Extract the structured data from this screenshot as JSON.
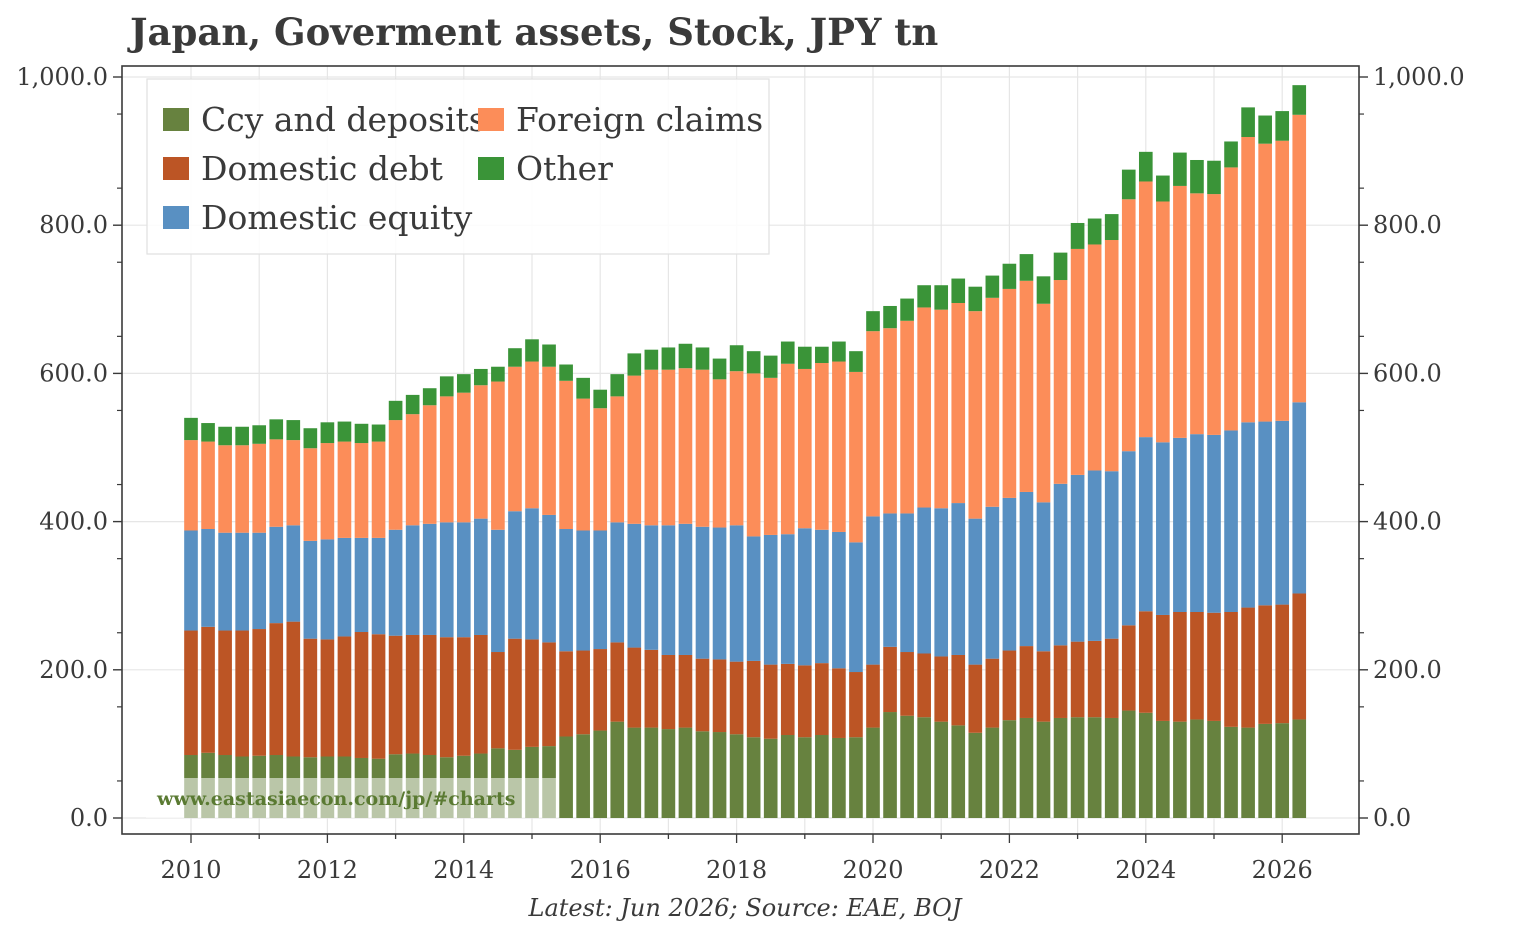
{
  "chart_data": {
    "type": "bar",
    "stacked": true,
    "title": "Japan, Goverment assets, Stock, JPY tn",
    "footnote": "Latest: Jun 2026; Source: EAE, BOJ",
    "watermark": "www.eastasiaecon.com/jp/#charts",
    "x_start": 2010.0,
    "x_step": 0.25,
    "x_ticks": [
      "2010",
      "2012",
      "2014",
      "2016",
      "2018",
      "2020",
      "2022",
      "2024",
      "2026"
    ],
    "y_ticks": [
      "0.0",
      "200.0",
      "400.0",
      "600.0",
      "800.0",
      "1,000.0"
    ],
    "ylim": [
      0,
      1000
    ],
    "legend_position": "top-left",
    "grid": true,
    "dual_y_axis": true,
    "series": [
      {
        "name": "Ccy and deposits",
        "color": "#67823f",
        "values": [
          85,
          88,
          85,
          83,
          84,
          85,
          83,
          82,
          83,
          83,
          81,
          80,
          86,
          87,
          85,
          82,
          84,
          87,
          94,
          92,
          96,
          97,
          110,
          113,
          118,
          130,
          122,
          122,
          120,
          122,
          117,
          116,
          113,
          109,
          107,
          112,
          109,
          112,
          108,
          109,
          122,
          143,
          138,
          136,
          130,
          125,
          115,
          122,
          132,
          135,
          130,
          135,
          136,
          136,
          135,
          145,
          142,
          131,
          130,
          133,
          131,
          123,
          122,
          127,
          128,
          133
        ]
      },
      {
        "name": "Domestic debt",
        "color": "#bc5525",
        "values": [
          168,
          170,
          168,
          170,
          171,
          178,
          182,
          160,
          158,
          162,
          170,
          168,
          160,
          160,
          162,
          162,
          160,
          160,
          130,
          150,
          145,
          140,
          115,
          113,
          110,
          107,
          108,
          105,
          100,
          98,
          98,
          98,
          98,
          103,
          100,
          96,
          97,
          97,
          94,
          88,
          85,
          88,
          86,
          86,
          88,
          95,
          92,
          93,
          94,
          97,
          95,
          98,
          102,
          103,
          107,
          115,
          137,
          143,
          148,
          145,
          146,
          155,
          162,
          160,
          160,
          170
        ]
      },
      {
        "name": "Domestic equity",
        "color": "#5990c2",
        "values": [
          135,
          132,
          132,
          132,
          130,
          130,
          130,
          132,
          135,
          133,
          127,
          130,
          143,
          148,
          150,
          155,
          155,
          157,
          165,
          172,
          177,
          172,
          165,
          162,
          160,
          162,
          167,
          168,
          175,
          177,
          178,
          178,
          184,
          168,
          175,
          175,
          185,
          180,
          184,
          175,
          200,
          180,
          187,
          197,
          200,
          205,
          197,
          205,
          206,
          208,
          201,
          218,
          225,
          230,
          226,
          235,
          235,
          233,
          235,
          240,
          240,
          245,
          250,
          248,
          248,
          258
        ]
      },
      {
        "name": "Foreign claims",
        "color": "#fc8d59",
        "values": [
          122,
          118,
          118,
          118,
          120,
          118,
          115,
          125,
          130,
          130,
          128,
          130,
          148,
          150,
          160,
          170,
          175,
          180,
          200,
          195,
          198,
          200,
          200,
          178,
          165,
          170,
          200,
          210,
          210,
          210,
          212,
          200,
          208,
          220,
          212,
          230,
          215,
          225,
          230,
          230,
          250,
          250,
          260,
          270,
          268,
          270,
          280,
          282,
          282,
          285,
          268,
          275,
          305,
          305,
          312,
          340,
          345,
          325,
          340,
          325,
          325,
          355,
          385,
          375,
          378,
          388
        ]
      },
      {
        "name": "Other",
        "color": "#3a9438",
        "values": [
          30,
          25,
          25,
          25,
          25,
          27,
          27,
          27,
          28,
          27,
          26,
          23,
          26,
          26,
          23,
          27,
          25,
          22,
          20,
          25,
          30,
          30,
          22,
          28,
          25,
          30,
          30,
          27,
          30,
          33,
          30,
          28,
          35,
          30,
          30,
          30,
          30,
          22,
          27,
          28,
          27,
          30,
          30,
          30,
          33,
          33,
          33,
          30,
          34,
          36,
          37,
          37,
          35,
          35,
          35,
          40,
          40,
          35,
          45,
          45,
          45,
          35,
          40,
          38,
          40,
          40
        ]
      }
    ]
  }
}
